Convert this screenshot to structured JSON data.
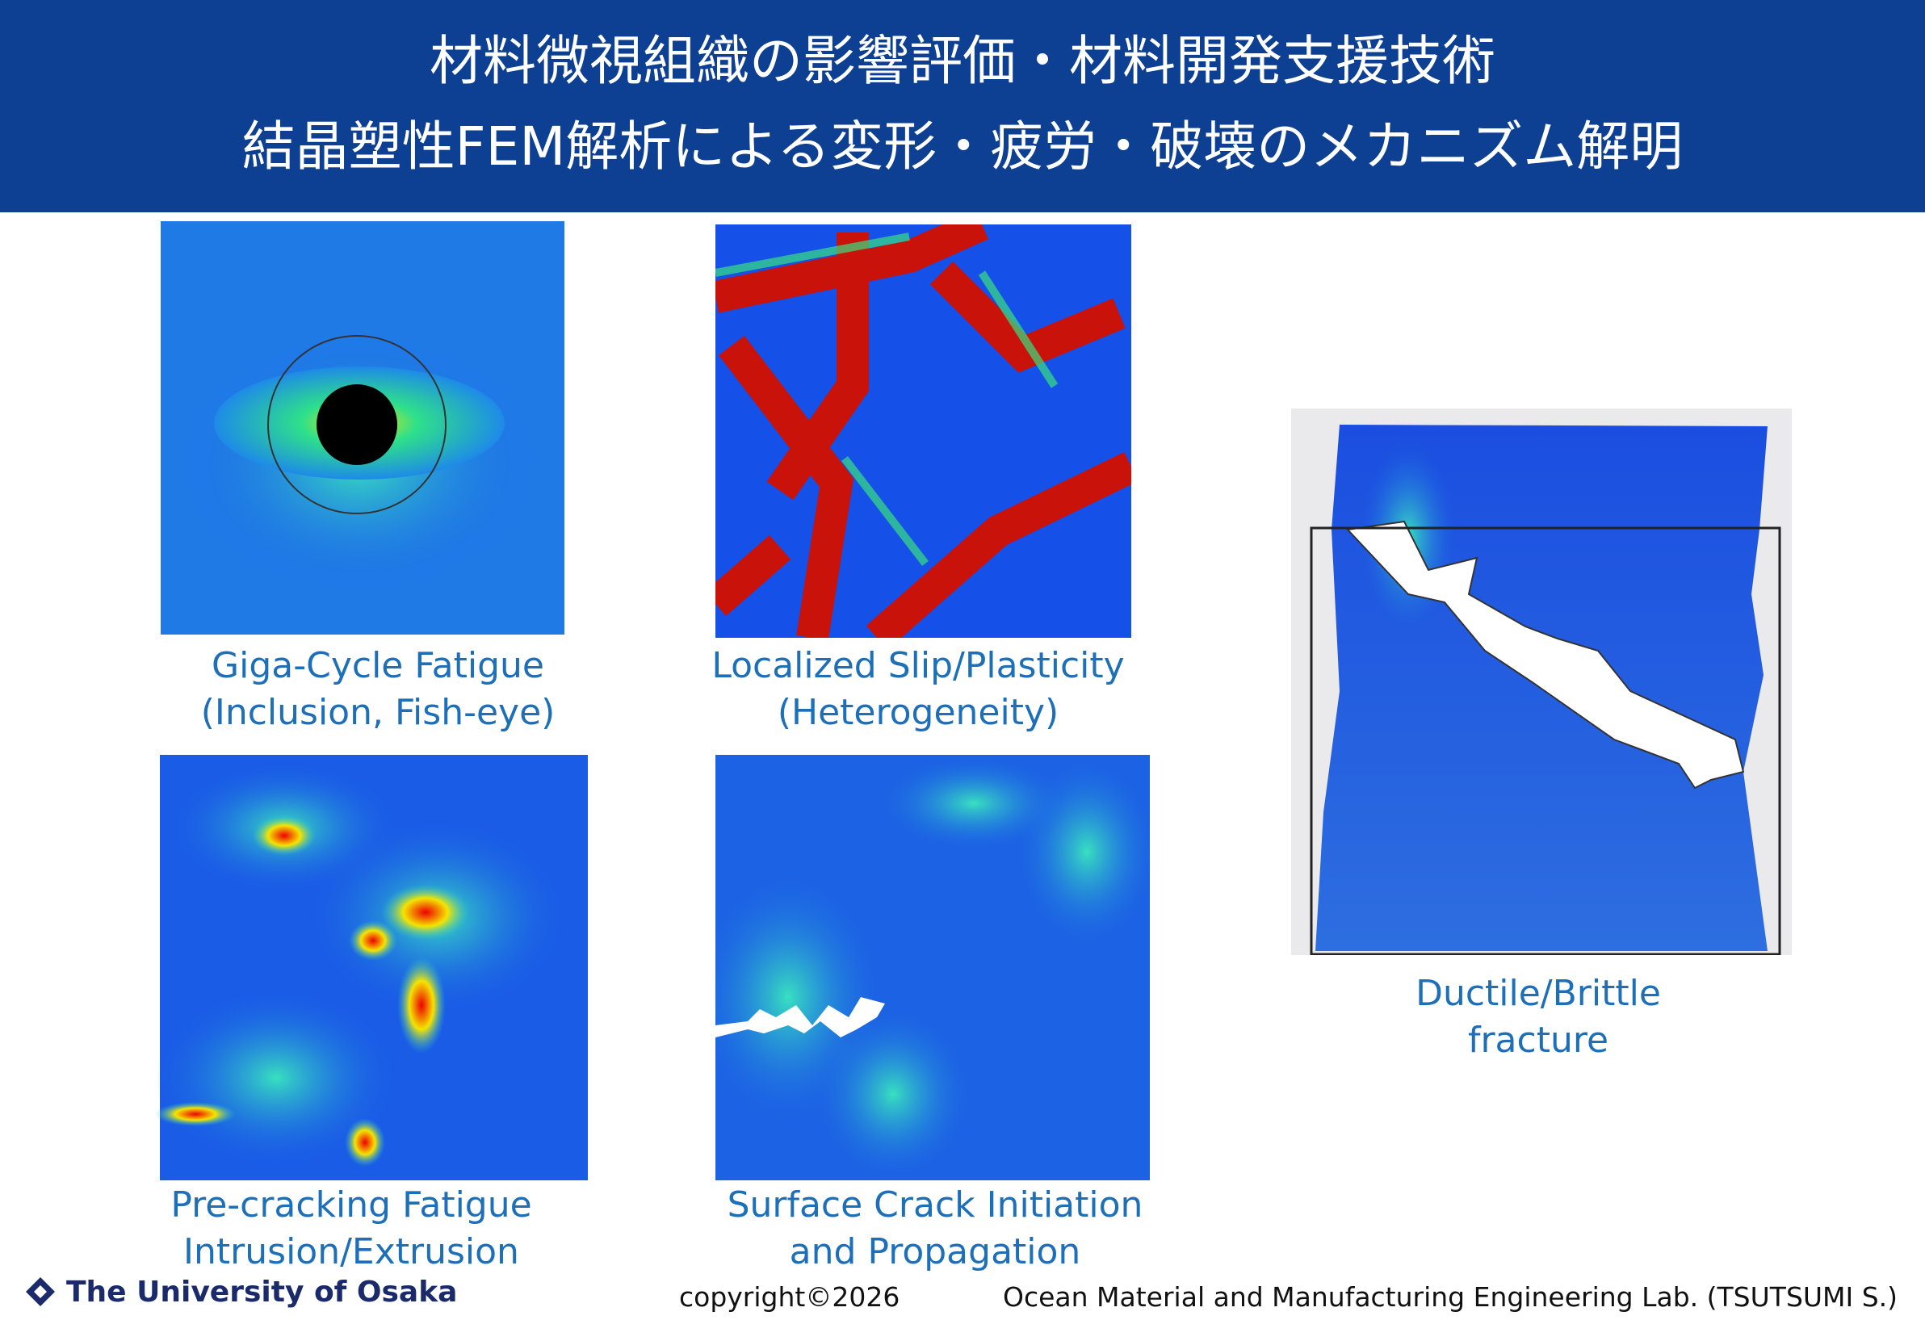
{
  "header": {
    "lines": [
      "材料微視組織の影響評価・材料開発支援技術",
      "結晶塑性FEM解析による変形・疲労・破壊のメカニズム解明"
    ]
  },
  "panels": [
    {
      "caption": [
        "Giga-Cycle Fatigue",
        "(Inclusion, Fish-eye)"
      ]
    },
    {
      "caption": [
        "Localized Slip/Plasticity",
        "(Heterogeneity)"
      ]
    },
    {
      "caption": [
        "Pre-cracking Fatigue",
        "Intrusion/Extrusion"
      ]
    },
    {
      "caption": [
        "Surface Crack Initiation",
        "and Propagation"
      ]
    },
    {
      "caption": [
        "Ductile/Brittle",
        "fracture"
      ]
    }
  ],
  "footer": {
    "university": "The University of Osaka",
    "copyright": "copyright©2026",
    "lab": "Ocean Material and Manufacturing Engineering Lab. (TSUTSUMI S.)"
  }
}
